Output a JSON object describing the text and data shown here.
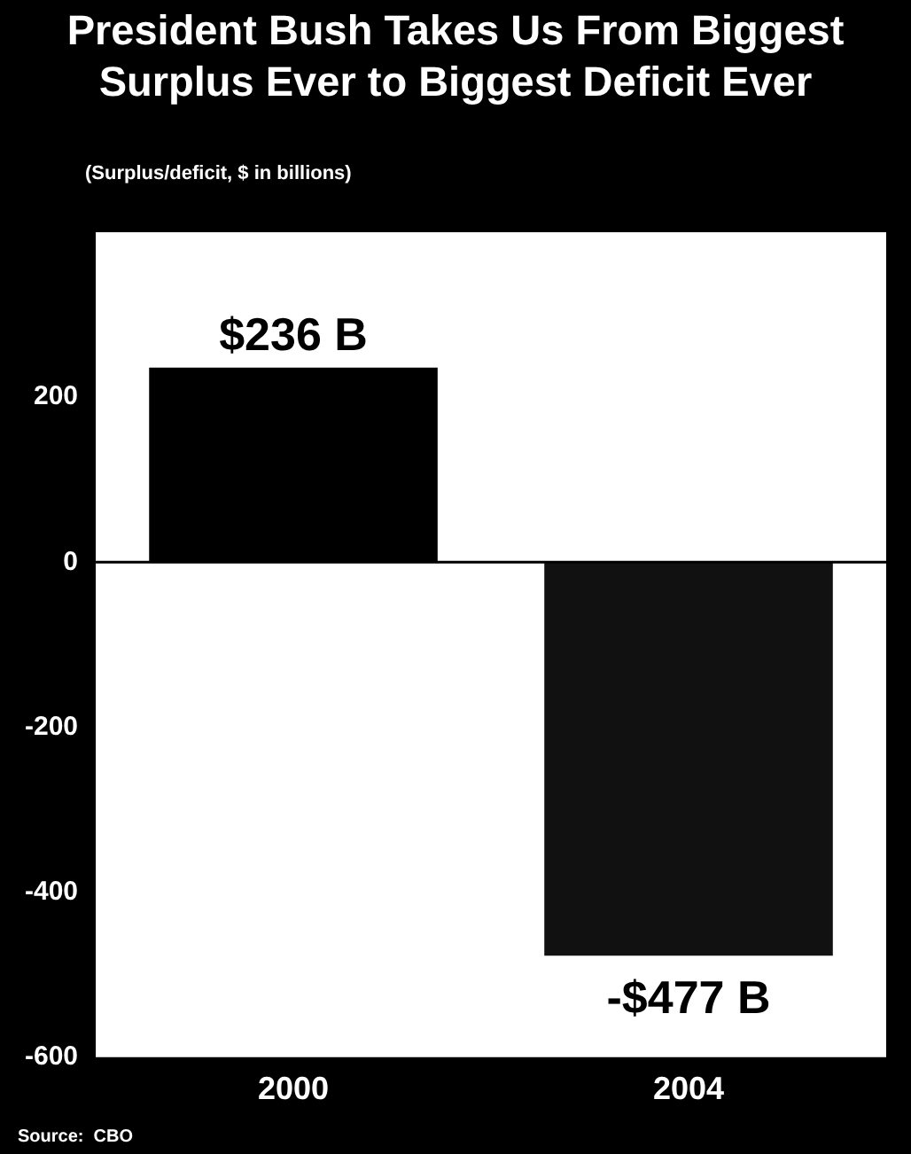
{
  "chart_data": {
    "type": "bar",
    "title": "President Bush Takes Us From Biggest Surplus Ever to Biggest Deficit Ever",
    "ylabel": "(Surplus/deficit, $ in billions)",
    "annotations": [
      "Source:  CBO"
    ],
    "categories": [
      "2000",
      "2004"
    ],
    "values": [
      236,
      -477
    ],
    "colors": [
      "#000000",
      "#111111"
    ],
    "value_labels": [
      "$236 B",
      "-$477 B"
    ],
    "ylim": [
      -600,
      400
    ],
    "yticks": [
      -600,
      -400,
      -200,
      0,
      200
    ],
    "ref_lines": [
      {
        "axis": "y",
        "value": 0,
        "color": "#000000"
      }
    ],
    "grid": false,
    "legend": false
  }
}
